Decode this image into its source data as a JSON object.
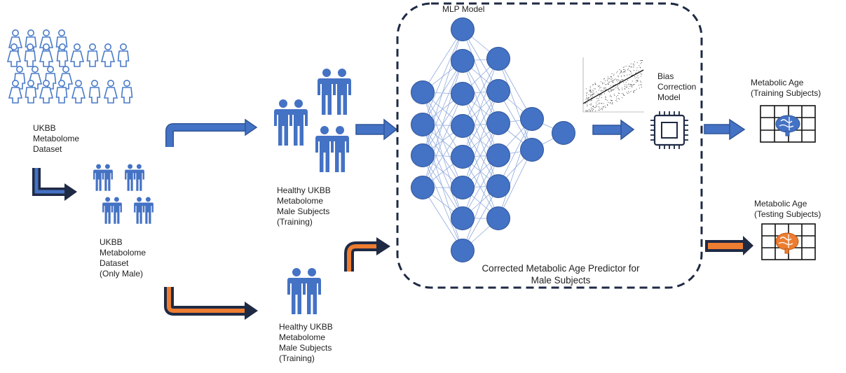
{
  "labels": {
    "dataset_all": [
      "UKBB",
      "Metabolome",
      "Dataset"
    ],
    "dataset_male": [
      "UKBB",
      "Metabolome",
      "Dataset",
      "(Only Male)"
    ],
    "healthy_training": [
      "Healthy UKBB",
      "Metabolome",
      "Male Subjects",
      "(Training)"
    ],
    "healthy_second": [
      "Healthy UKBB",
      "Metabolome",
      "Male Subjects",
      "(Training)"
    ],
    "mlp_title": "MLP Model",
    "bias_model": [
      "Bias",
      "Correction",
      "Model"
    ],
    "predictor": [
      "Corrected Metabolic Age Predictor for",
      "Male Subjects"
    ],
    "output_training": [
      "Metabolic Age",
      "(Training Subjects)"
    ],
    "output_testing": [
      "Metabolic Age",
      "(Testing Subjects)"
    ]
  },
  "icons": {
    "population": "mixed-population-icon",
    "male_group": "male-group-icon",
    "neural_net": "neural-network-icon",
    "scatter": "scatter-plot-thumbnail-icon",
    "chip": "processor-chip-icon",
    "brain": "brain-grid-icon"
  },
  "colors": {
    "blue": "#4472c4",
    "orange": "#ed7d31",
    "navy": "#1f2a44",
    "outline_blue": "#4a7bc8"
  }
}
